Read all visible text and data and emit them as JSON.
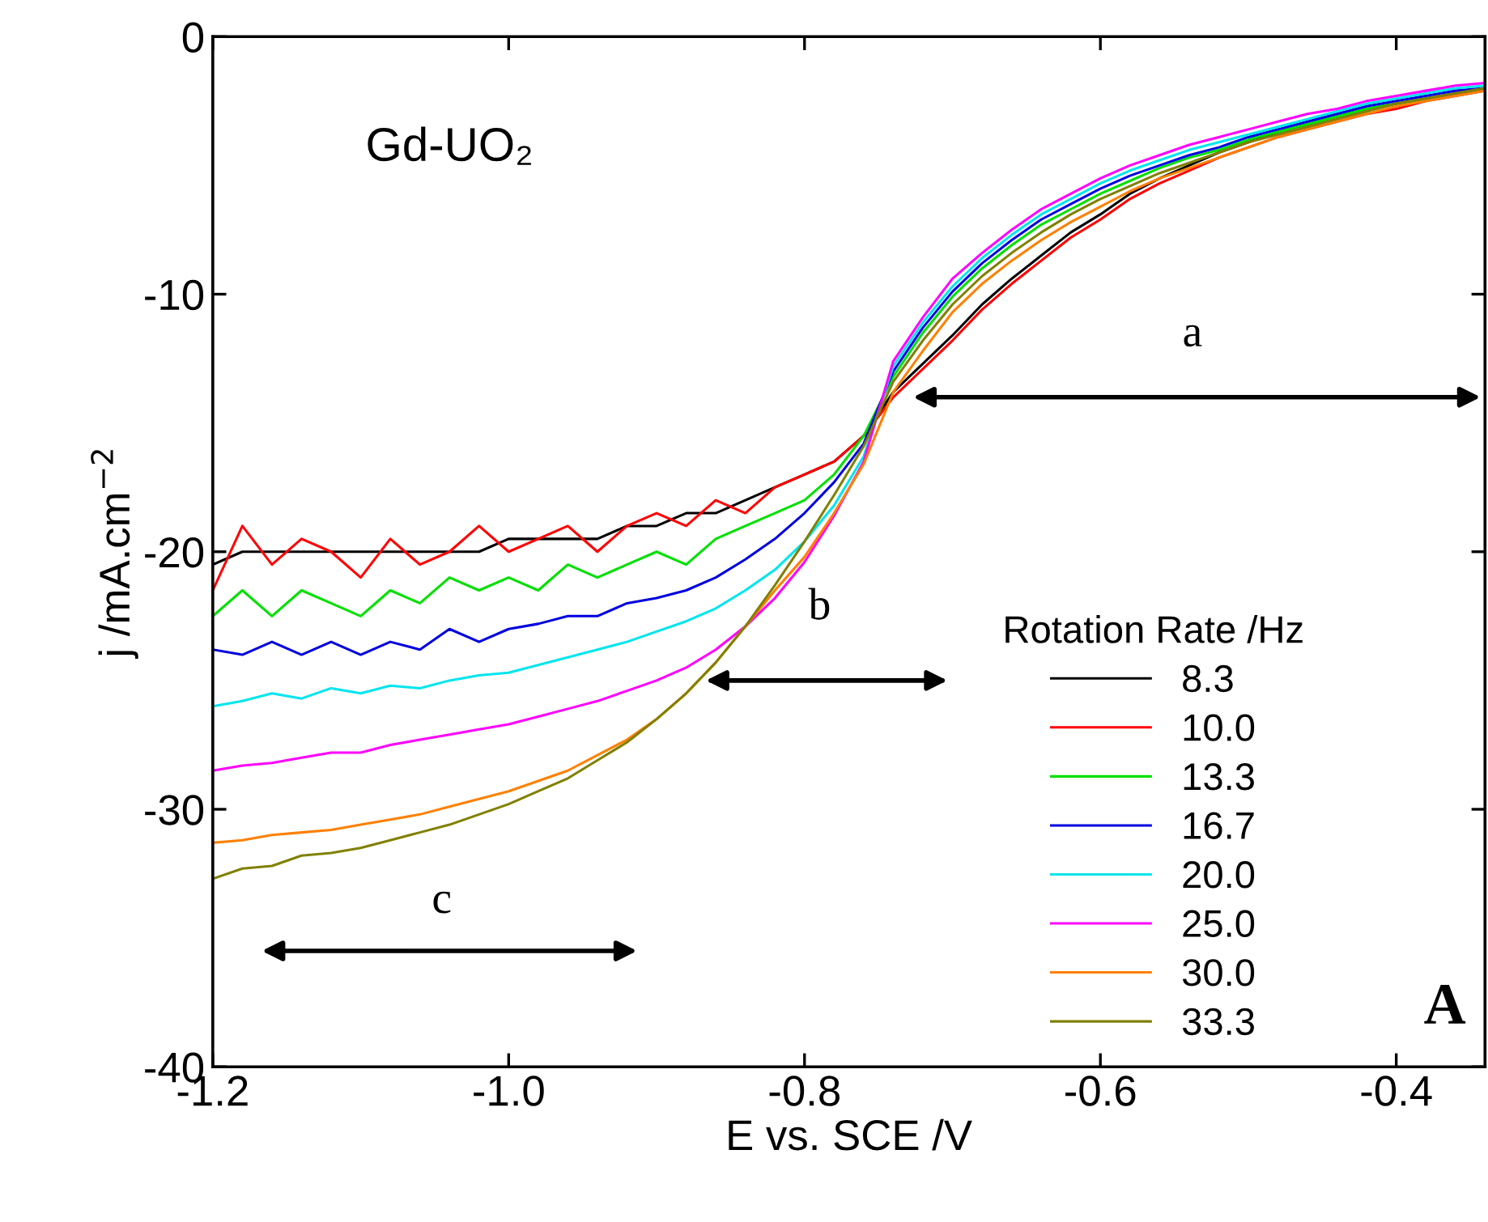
{
  "chart_data": {
    "type": "line",
    "xlabel": "E vs. SCE /V",
    "ylabel": "j /mA.cm$^{−2}$",
    "legend_title": "Rotation Rate /Hz",
    "x": [
      -1.2,
      -1.18,
      -1.16,
      -1.14,
      -1.12,
      -1.1,
      -1.08,
      -1.06,
      -1.04,
      -1.02,
      -1.0,
      -0.98,
      -0.96,
      -0.94,
      -0.92,
      -0.9,
      -0.88,
      -0.86,
      -0.84,
      -0.82,
      -0.8,
      -0.78,
      -0.76,
      -0.74,
      -0.72,
      -0.7,
      -0.68,
      -0.66,
      -0.64,
      -0.62,
      -0.6,
      -0.58,
      -0.56,
      -0.54,
      -0.52,
      -0.5,
      -0.48,
      -0.46,
      -0.44,
      -0.42,
      -0.4,
      -0.38,
      -0.36,
      -0.34
    ],
    "series": [
      {
        "name": "8.3",
        "color": "#000000",
        "values": [
          -20.5,
          -20,
          -20,
          -20,
          -20,
          -20,
          -20,
          -20,
          -20,
          -20,
          -19.5,
          -19.5,
          -19.5,
          -19.5,
          -19,
          -19,
          -18.5,
          -18.5,
          -18,
          -17.5,
          -17,
          -16.5,
          -15.5,
          -13.8,
          -12.7,
          -11.6,
          -10.4,
          -9.4,
          -8.5,
          -7.6,
          -6.9,
          -6.1,
          -5.5,
          -5.0,
          -4.5,
          -4.1,
          -3.7,
          -3.4,
          -3.1,
          -2.8,
          -2.6,
          -2.4,
          -2.2,
          -2.0
        ]
      },
      {
        "name": "10.0",
        "color": "#ff0000",
        "values": [
          -21.5,
          -19,
          -20.5,
          -19.5,
          -20,
          -21,
          -19.5,
          -20.5,
          -20,
          -19,
          -20,
          -19.5,
          -19,
          -20,
          -19,
          -18.5,
          -19,
          -18,
          -18.5,
          -17.5,
          -17,
          -16.5,
          -15.5,
          -14.0,
          -12.9,
          -11.8,
          -10.6,
          -9.6,
          -8.7,
          -7.8,
          -7.1,
          -6.3,
          -5.7,
          -5.2,
          -4.7,
          -4.3,
          -3.9,
          -3.6,
          -3.3,
          -3.0,
          -2.8,
          -2.5,
          -2.3,
          -2.1
        ]
      },
      {
        "name": "13.3",
        "color": "#00e000",
        "values": [
          -22.5,
          -21.5,
          -22.5,
          -21.5,
          -22,
          -22.5,
          -21.5,
          -22,
          -21,
          -21.5,
          -21,
          -21.5,
          -20.5,
          -21,
          -20.5,
          -20,
          -20.5,
          -19.5,
          -19,
          -18.5,
          -18,
          -17,
          -15.5,
          -13.2,
          -11.5,
          -10.1,
          -9.0,
          -8.1,
          -7.3,
          -6.7,
          -6.1,
          -5.6,
          -5.1,
          -4.7,
          -4.4,
          -4.0,
          -3.7,
          -3.4,
          -3.1,
          -2.8,
          -2.6,
          -2.4,
          null,
          null
        ]
      },
      {
        "name": "16.7",
        "color": "#0000e0",
        "values": [
          -23.8,
          -24,
          -23.5,
          -24,
          -23.5,
          -24,
          -23.5,
          -23.8,
          -23,
          -23.5,
          -23,
          -22.8,
          -22.5,
          -22.5,
          -22,
          -21.8,
          -21.5,
          -21,
          -20.3,
          -19.5,
          -18.5,
          -17.3,
          -15.8,
          -13.0,
          -11.3,
          -9.9,
          -8.8,
          -7.9,
          -7.1,
          -6.5,
          -5.9,
          -5.4,
          -5.0,
          -4.6,
          -4.3,
          -3.9,
          -3.6,
          -3.3,
          -3.0,
          -2.7,
          -2.5,
          -2.3,
          -2.1,
          -2.0
        ]
      },
      {
        "name": "20.0",
        "color": "#00e5ee",
        "values": [
          -26,
          -25.8,
          -25.5,
          -25.7,
          -25.3,
          -25.5,
          -25.2,
          -25.3,
          -25,
          -24.8,
          -24.7,
          -24.4,
          -24.1,
          -23.8,
          -23.5,
          -23.1,
          -22.7,
          -22.2,
          -21.5,
          -20.7,
          -19.6,
          -18.2,
          -16.3,
          -12.8,
          -11.1,
          -9.7,
          -8.6,
          -7.7,
          -6.9,
          -6.3,
          -5.7,
          -5.2,
          -4.8,
          -4.4,
          -4.1,
          -3.8,
          -3.5,
          -3.2,
          -2.9,
          -2.6,
          -2.4,
          -2.2,
          -2.0,
          -1.9
        ]
      },
      {
        "name": "25.0",
        "color": "#ff00ff",
        "values": [
          -28.5,
          -28.3,
          -28.2,
          -28,
          -27.8,
          -27.8,
          -27.5,
          -27.3,
          -27.1,
          -26.9,
          -26.7,
          -26.4,
          -26.1,
          -25.8,
          -25.4,
          -25,
          -24.5,
          -23.8,
          -22.9,
          -21.8,
          -20.4,
          -18.6,
          -16.5,
          -12.6,
          -10.9,
          -9.4,
          -8.4,
          -7.5,
          -6.7,
          -6.1,
          -5.5,
          -5.0,
          -4.6,
          -4.2,
          -3.9,
          -3.6,
          -3.3,
          -3.0,
          -2.8,
          -2.5,
          -2.3,
          -2.1,
          -1.9,
          -1.8
        ]
      },
      {
        "name": "30.0",
        "color": "#ff8000",
        "values": [
          -31.3,
          -31.2,
          -31,
          -30.9,
          -30.8,
          -30.6,
          -30.4,
          -30.2,
          -29.9,
          -29.6,
          -29.3,
          -28.9,
          -28.5,
          -27.9,
          -27.3,
          -26.5,
          -25.5,
          -24.3,
          -22.9,
          -21.5,
          -20.2,
          -18.5,
          -16.6,
          -13.8,
          -12.2,
          -10.7,
          -9.6,
          -8.7,
          -7.9,
          -7.2,
          -6.6,
          -6.0,
          -5.5,
          -5.1,
          -4.7,
          -4.3,
          -3.9,
          -3.6,
          -3.3,
          -3.0,
          -2.7,
          -2.5,
          -2.3,
          -2.1
        ]
      },
      {
        "name": "33.3",
        "color": "#808000",
        "values": [
          -32.7,
          -32.3,
          -32.2,
          -31.8,
          -31.7,
          -31.5,
          -31.2,
          -30.9,
          -30.6,
          -30.2,
          -29.8,
          -29.3,
          -28.8,
          -28.1,
          -27.4,
          -26.5,
          -25.5,
          -24.3,
          -22.9,
          -21.3,
          -19.6,
          -17.8,
          -15.9,
          -13.4,
          -11.8,
          -10.4,
          -9.3,
          -8.4,
          -7.6,
          -6.9,
          -6.3,
          -5.8,
          -5.3,
          -4.9,
          -4.5,
          -4.1,
          -3.8,
          -3.5,
          -3.2,
          -2.9,
          -2.6,
          -2.4,
          -2.2,
          -2.0
        ]
      }
    ],
    "annotations": [
      "Gd-UO₂",
      "A",
      "a",
      "b",
      "c"
    ],
    "xlim": [
      -1.2,
      -0.34
    ],
    "ylim": [
      -40,
      0
    ],
    "xticks": [
      -1.2,
      {
        "value": -1.0,
        "label": "-1.0"
      },
      -0.8,
      -0.6,
      -0.4
    ],
    "yticks": [
      0,
      -10,
      -20,
      -30,
      -40
    ],
    "legend": "bottom right",
    "grid": false
  }
}
